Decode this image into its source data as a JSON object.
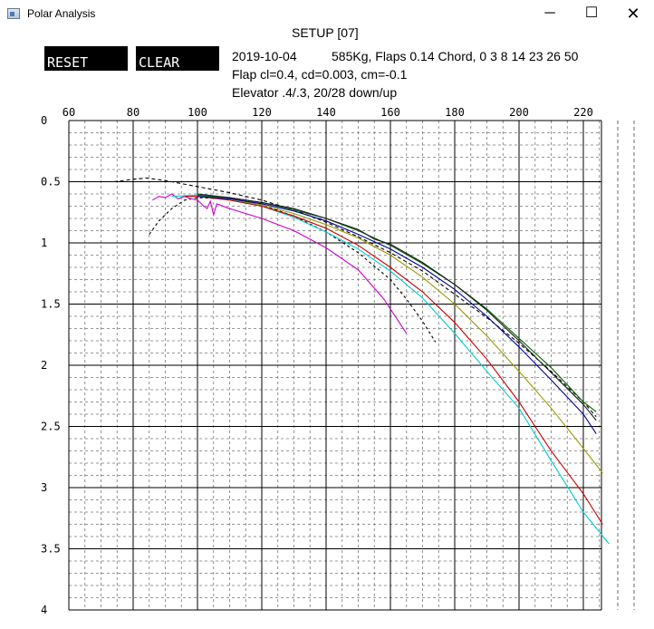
{
  "window": {
    "title": "Polar Analysis",
    "minimize": "─",
    "maximize": "☐",
    "close": "✕",
    "icon": "app-window-icon"
  },
  "header": {
    "setup_label": "SETUP [07]",
    "reset_label": "RESET",
    "clear_label": "CLEAR",
    "date": "2019-10-04",
    "specs": "585Kg, Flaps 0.14 Chord, 0 3 8 14 23 26 50",
    "flap": "Flap cl=0.4, cd=0.003, cm=-0.1",
    "elevator": "Elevator .4/.3, 20/28 down/up"
  },
  "chart_data": {
    "type": "line",
    "title": "",
    "xlabel": "",
    "ylabel": "",
    "xlim": [
      60,
      226
    ],
    "ylim": [
      0,
      4
    ],
    "y_inverted": true,
    "x_ticks": [
      "60",
      "80",
      "100",
      "120",
      "140",
      "160",
      "180",
      "200",
      "220"
    ],
    "y_ticks": [
      "0",
      "0.5",
      "1",
      "1.5",
      "2",
      "2.5",
      "3",
      "3.5",
      "4"
    ],
    "grid": "major solid, minor dashed",
    "series": [
      {
        "color": "#000000",
        "dash": "4,3",
        "values": [
          [
            74,
            0.5
          ],
          [
            80,
            0.48
          ],
          [
            84,
            0.47
          ],
          [
            90,
            0.49
          ],
          [
            100,
            0.54
          ],
          [
            110,
            0.59
          ],
          [
            120,
            0.65
          ],
          [
            130,
            0.73
          ],
          [
            140,
            0.83
          ],
          [
            150,
            0.95
          ],
          [
            160,
            1.08
          ],
          [
            170,
            1.23
          ],
          [
            180,
            1.42
          ],
          [
            190,
            1.61
          ],
          [
            200,
            1.82
          ],
          [
            210,
            2.05
          ],
          [
            220,
            2.3
          ],
          [
            224,
            2.42
          ]
        ]
      },
      {
        "color": "#000000",
        "dash": "3,3",
        "values": [
          [
            85,
            0.93
          ],
          [
            88,
            0.82
          ],
          [
            92,
            0.72
          ],
          [
            96,
            0.65
          ],
          [
            100,
            0.63
          ],
          [
            110,
            0.64
          ],
          [
            120,
            0.69
          ],
          [
            130,
            0.78
          ],
          [
            140,
            0.91
          ],
          [
            150,
            1.08
          ],
          [
            160,
            1.3
          ],
          [
            165,
            1.46
          ],
          [
            170,
            1.64
          ],
          [
            174,
            1.81
          ]
        ]
      },
      {
        "color": "#cc00cc",
        "values": [
          [
            86,
            0.65
          ],
          [
            88,
            0.62
          ],
          [
            90,
            0.63
          ],
          [
            92,
            0.6
          ],
          [
            94,
            0.64
          ],
          [
            96,
            0.62
          ],
          [
            98,
            0.64
          ],
          [
            100,
            0.65
          ],
          [
            102,
            0.7
          ],
          [
            103,
            0.72
          ],
          [
            104,
            0.66
          ],
          [
            105,
            0.77
          ],
          [
            106,
            0.68
          ],
          [
            110,
            0.72
          ],
          [
            120,
            0.8
          ],
          [
            130,
            0.9
          ],
          [
            140,
            1.04
          ],
          [
            150,
            1.22
          ],
          [
            158,
            1.46
          ],
          [
            162,
            1.62
          ],
          [
            165,
            1.74
          ]
        ]
      },
      {
        "color": "#00cccc",
        "values": [
          [
            92,
            0.62
          ],
          [
            100,
            0.61
          ],
          [
            110,
            0.64
          ],
          [
            120,
            0.7
          ],
          [
            130,
            0.79
          ],
          [
            140,
            0.91
          ],
          [
            150,
            1.05
          ],
          [
            160,
            1.23
          ],
          [
            170,
            1.45
          ],
          [
            180,
            1.74
          ],
          [
            190,
            2.05
          ],
          [
            200,
            2.35
          ],
          [
            210,
            2.78
          ],
          [
            220,
            3.2
          ],
          [
            228,
            3.46
          ]
        ]
      },
      {
        "color": "#cc0000",
        "values": [
          [
            96,
            0.62
          ],
          [
            100,
            0.62
          ],
          [
            110,
            0.65
          ],
          [
            120,
            0.7
          ],
          [
            130,
            0.78
          ],
          [
            140,
            0.88
          ],
          [
            150,
            1.02
          ],
          [
            160,
            1.2
          ],
          [
            170,
            1.4
          ],
          [
            180,
            1.65
          ],
          [
            190,
            1.95
          ],
          [
            200,
            2.3
          ],
          [
            210,
            2.7
          ],
          [
            220,
            3.05
          ],
          [
            226,
            3.3
          ]
        ]
      },
      {
        "color": "#999900",
        "values": [
          [
            100,
            0.62
          ],
          [
            110,
            0.64
          ],
          [
            120,
            0.69
          ],
          [
            130,
            0.76
          ],
          [
            140,
            0.85
          ],
          [
            150,
            0.96
          ],
          [
            160,
            1.1
          ],
          [
            170,
            1.28
          ],
          [
            180,
            1.5
          ],
          [
            190,
            1.76
          ],
          [
            200,
            2.05
          ],
          [
            210,
            2.35
          ],
          [
            220,
            2.68
          ],
          [
            226,
            2.88
          ]
        ]
      },
      {
        "color": "#000099",
        "values": [
          [
            100,
            0.62
          ],
          [
            110,
            0.64
          ],
          [
            120,
            0.68
          ],
          [
            130,
            0.74
          ],
          [
            140,
            0.82
          ],
          [
            150,
            0.93
          ],
          [
            160,
            1.05
          ],
          [
            170,
            1.2
          ],
          [
            180,
            1.38
          ],
          [
            190,
            1.6
          ],
          [
            200,
            1.85
          ],
          [
            210,
            2.12
          ],
          [
            220,
            2.4
          ],
          [
            224,
            2.56
          ]
        ]
      },
      {
        "color": "#006600",
        "values": [
          [
            100,
            0.61
          ],
          [
            110,
            0.63
          ],
          [
            120,
            0.67
          ],
          [
            130,
            0.73
          ],
          [
            140,
            0.8
          ],
          [
            150,
            0.9
          ],
          [
            160,
            1.02
          ],
          [
            170,
            1.17
          ],
          [
            180,
            1.34
          ],
          [
            190,
            1.54
          ],
          [
            200,
            1.78
          ],
          [
            210,
            2.02
          ],
          [
            220,
            2.3
          ],
          [
            224,
            2.38
          ]
        ]
      },
      {
        "color": "#1a1a1a",
        "values": [
          [
            100,
            0.6
          ],
          [
            110,
            0.63
          ],
          [
            120,
            0.67
          ],
          [
            130,
            0.72
          ],
          [
            140,
            0.8
          ],
          [
            150,
            0.89
          ],
          [
            155,
            0.97
          ],
          [
            160,
            1.01
          ],
          [
            170,
            1.16
          ],
          [
            180,
            1.34
          ],
          [
            190,
            1.55
          ],
          [
            200,
            1.8
          ],
          [
            210,
            2.06
          ],
          [
            220,
            2.32
          ],
          [
            224,
            2.45
          ]
        ]
      }
    ]
  }
}
